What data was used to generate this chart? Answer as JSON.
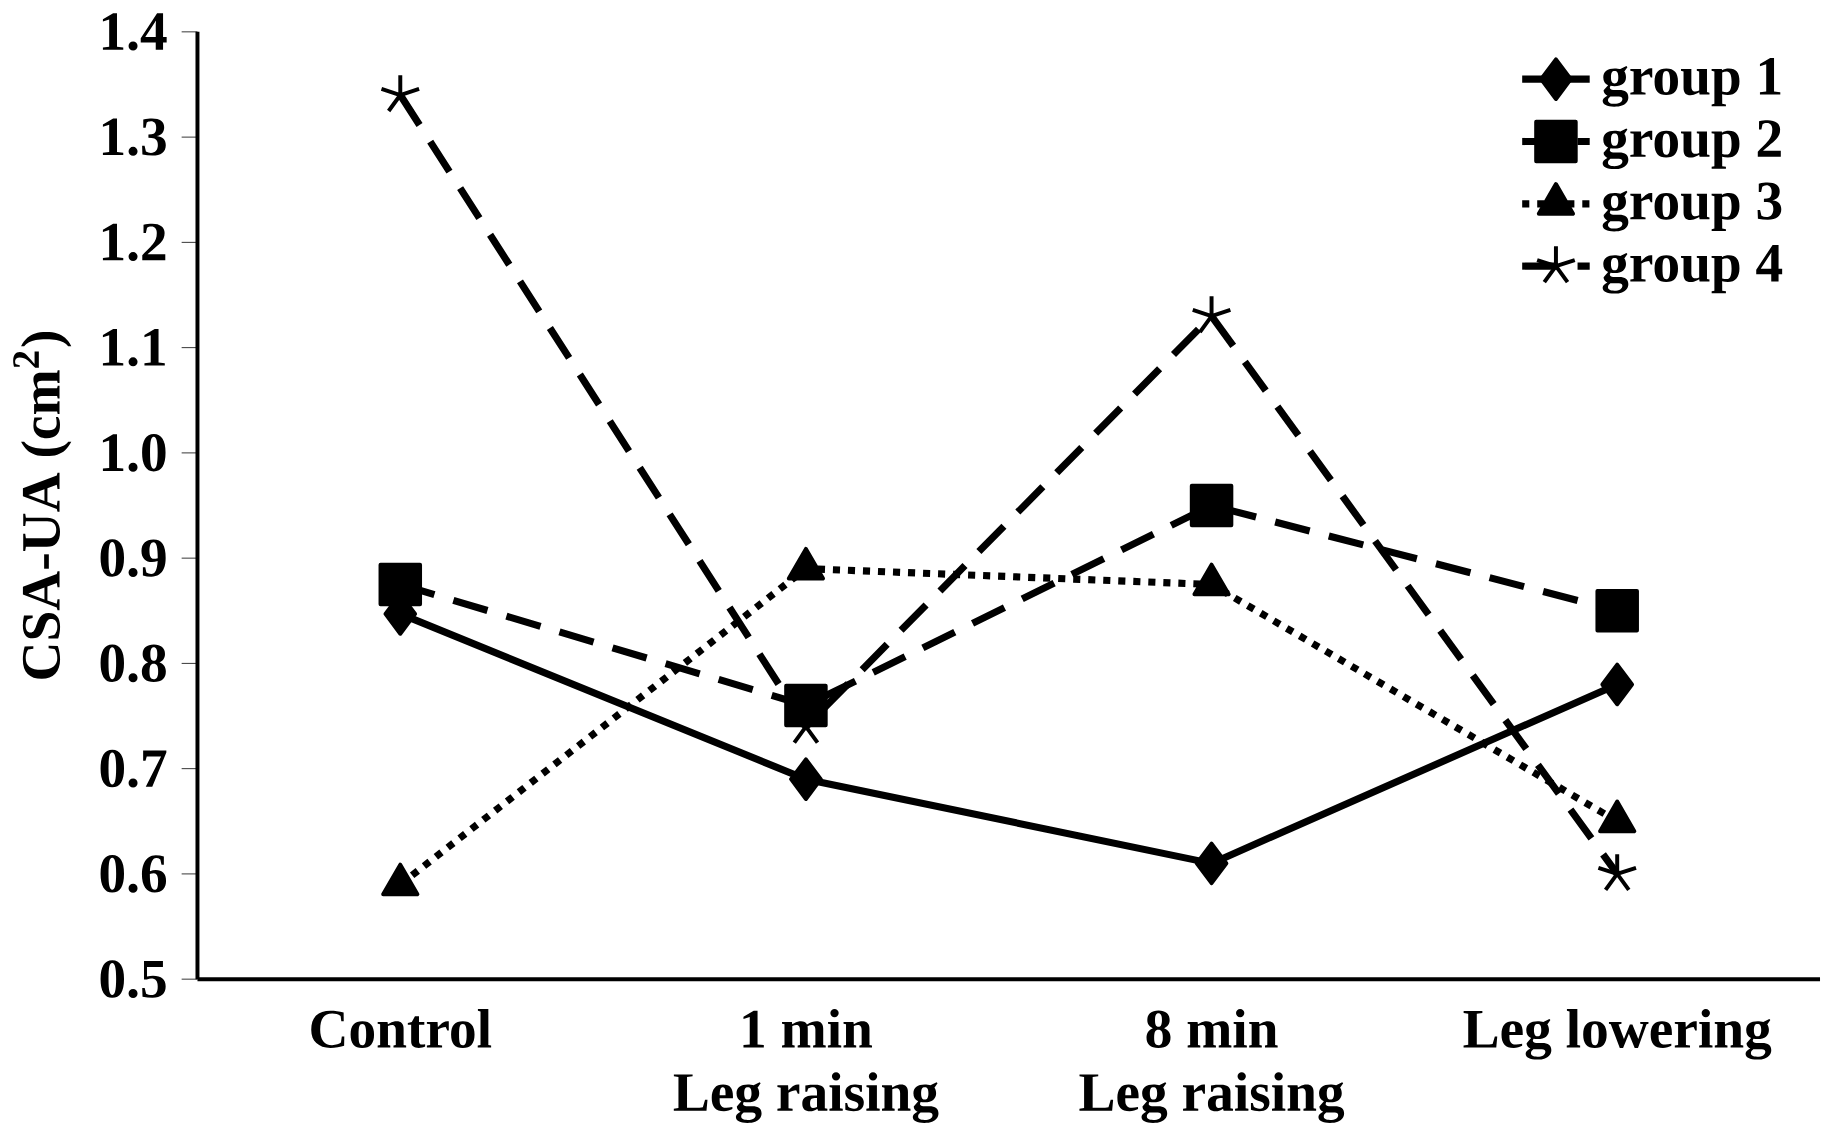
{
  "chart_data": {
    "type": "line",
    "ylabel": "CSA-UA (cm$^{2}$)",
    "categories": [
      "Control",
      "1 min\nLeg raising",
      "8 min\nLeg raising",
      "Leg lowering"
    ],
    "series": [
      {
        "name": "group 1",
        "color": "#000000",
        "values": [
          0.847,
          0.69,
          0.61,
          0.78
        ],
        "marker": "diamond",
        "line_style": "solid"
      },
      {
        "name": "group 2",
        "color": "#000000",
        "values": [
          0.875,
          0.76,
          0.95,
          0.85
        ],
        "marker": "square",
        "line_style": "dashed"
      },
      {
        "name": "group 3",
        "color": "#000000",
        "values": [
          0.59,
          0.89,
          0.875,
          0.65
        ],
        "marker": "triangle",
        "line_style": "dotted"
      },
      {
        "name": "group 4",
        "color": "#000000",
        "values": [
          1.34,
          0.74,
          1.13,
          0.6
        ],
        "marker": "cross",
        "line_style": "dashed"
      }
    ],
    "ylim": [
      0.5,
      1.4
    ],
    "yticks": [
      {
        "value": 0.5,
        "label": "0.5"
      },
      {
        "value": 0.6,
        "label": "0.6"
      },
      {
        "value": 0.7,
        "label": "0.7"
      },
      {
        "value": 0.8,
        "label": "0.8"
      },
      {
        "value": 0.9,
        "label": "0.9"
      },
      {
        "value": 1.0,
        "label": "1.0"
      },
      {
        "value": 1.1,
        "label": "1.1"
      },
      {
        "value": 1.2,
        "label": "1.2"
      },
      {
        "value": 1.3,
        "label": "1.3"
      },
      {
        "value": 1.4,
        "label": "1.4"
      }
    ],
    "grid": false,
    "legend": "top right"
  }
}
